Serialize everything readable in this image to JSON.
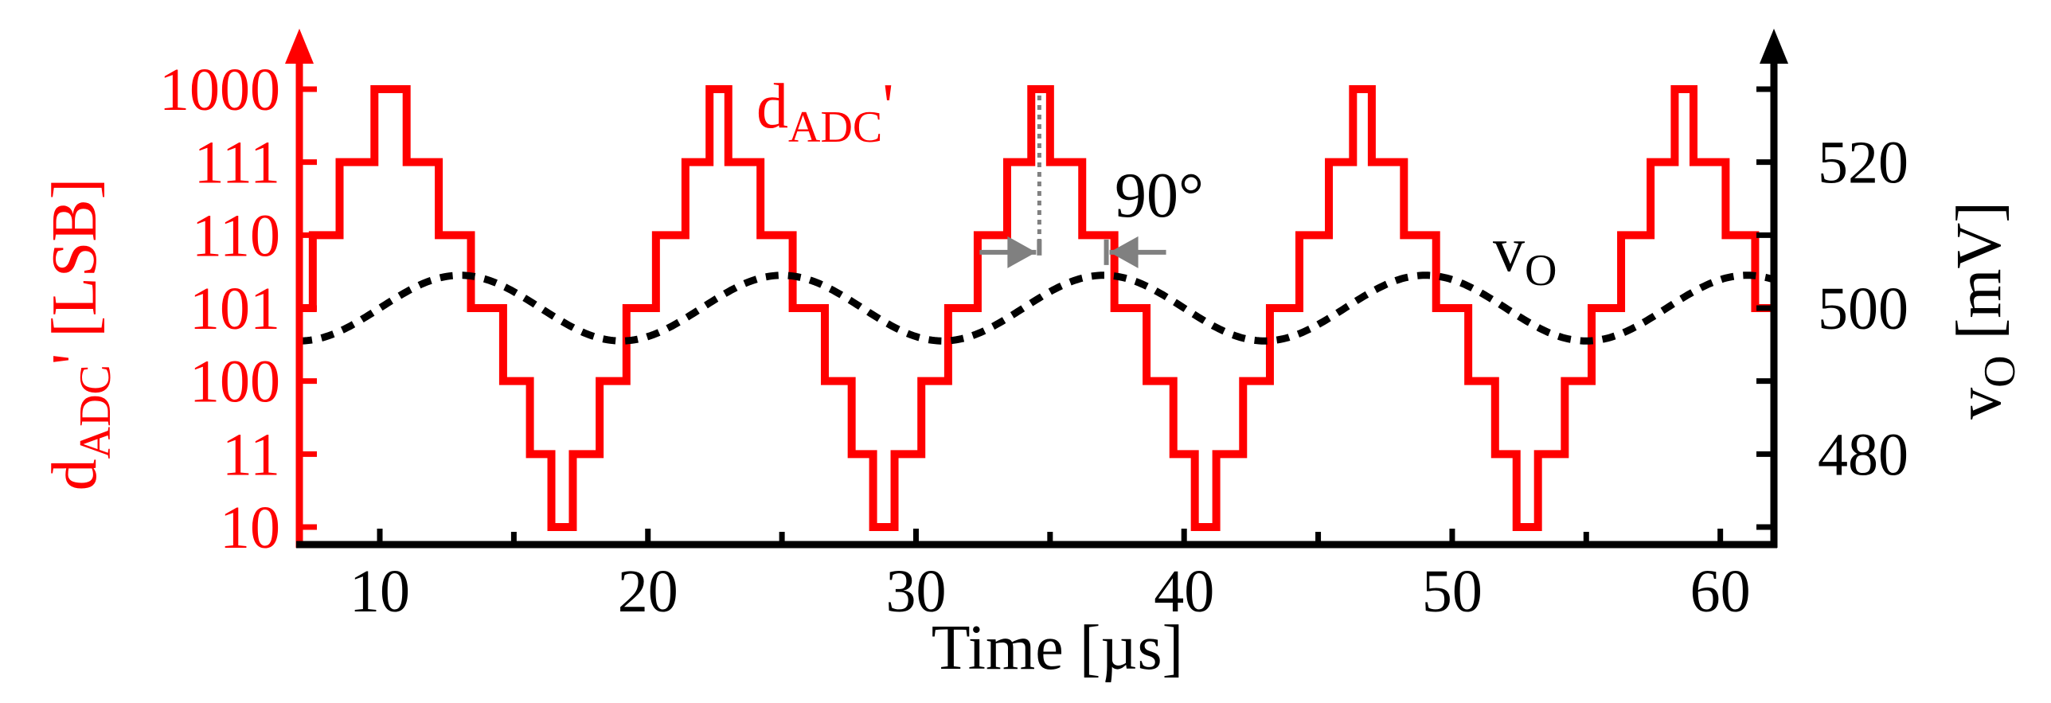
{
  "chart_data": {
    "type": "line",
    "xlabel": "Time [µs]",
    "x_ticks": [
      "10",
      "20",
      "30",
      "40",
      "50",
      "60"
    ],
    "xlim": [
      7,
      62
    ],
    "left_axis": {
      "label_main": "d",
      "label_sub": "ADC",
      "label_rest": "' [LSB]",
      "color": "#ff0000",
      "tick_labels": [
        "1000",
        "111",
        "110",
        "101",
        "100",
        "11",
        "10"
      ],
      "level_values": [
        8,
        7,
        6,
        5,
        4,
        3,
        2
      ],
      "ylim": [
        2,
        8
      ]
    },
    "right_axis": {
      "label_main": "v",
      "label_sub": "O",
      "label_rest": " [mV]",
      "color": "#000000",
      "tick_labels": [
        "520",
        "500",
        "480"
      ],
      "tick_values": [
        520,
        500,
        480
      ],
      "ylim": [
        470,
        530
      ]
    },
    "series": [
      {
        "label_main": "d",
        "label_sub": "ADC",
        "label_rest": "'",
        "axis": "left",
        "style": "step",
        "color": "#ff0000",
        "period_us": 12,
        "steps": [
          {
            "x": 7.0,
            "y": 5
          },
          {
            "x": 7.5,
            "y": 6
          },
          {
            "x": 8.5,
            "y": 7
          },
          {
            "x": 9.8,
            "y": 8
          },
          {
            "x": 11.0,
            "y": 7
          },
          {
            "x": 12.2,
            "y": 6
          },
          {
            "x": 13.4,
            "y": 5
          },
          {
            "x": 14.6,
            "y": 4
          },
          {
            "x": 15.6,
            "y": 3
          },
          {
            "x": 16.4,
            "y": 2
          },
          {
            "x": 17.2,
            "y": 3
          },
          {
            "x": 18.2,
            "y": 4
          },
          {
            "x": 19.2,
            "y": 5
          },
          {
            "x": 20.3,
            "y": 6
          },
          {
            "x": 21.4,
            "y": 7
          },
          {
            "x": 22.3,
            "y": 8
          },
          {
            "x": 23.0,
            "y": 7
          },
          {
            "x": 24.2,
            "y": 6
          },
          {
            "x": 25.4,
            "y": 5
          },
          {
            "x": 26.6,
            "y": 4
          },
          {
            "x": 27.6,
            "y": 3
          },
          {
            "x": 28.4,
            "y": 2
          },
          {
            "x": 29.2,
            "y": 3
          },
          {
            "x": 30.2,
            "y": 4
          },
          {
            "x": 31.2,
            "y": 5
          },
          {
            "x": 32.3,
            "y": 6
          },
          {
            "x": 33.4,
            "y": 7
          },
          {
            "x": 34.3,
            "y": 8
          },
          {
            "x": 35.0,
            "y": 7
          },
          {
            "x": 36.2,
            "y": 6
          },
          {
            "x": 37.4,
            "y": 5
          },
          {
            "x": 38.6,
            "y": 4
          },
          {
            "x": 39.6,
            "y": 3
          },
          {
            "x": 40.4,
            "y": 2
          },
          {
            "x": 41.2,
            "y": 3
          },
          {
            "x": 42.2,
            "y": 4
          },
          {
            "x": 43.2,
            "y": 5
          },
          {
            "x": 44.3,
            "y": 6
          },
          {
            "x": 45.4,
            "y": 7
          },
          {
            "x": 46.3,
            "y": 8
          },
          {
            "x": 47.0,
            "y": 7
          },
          {
            "x": 48.2,
            "y": 6
          },
          {
            "x": 49.4,
            "y": 5
          },
          {
            "x": 50.6,
            "y": 4
          },
          {
            "x": 51.6,
            "y": 3
          },
          {
            "x": 52.4,
            "y": 2
          },
          {
            "x": 53.2,
            "y": 3
          },
          {
            "x": 54.2,
            "y": 4
          },
          {
            "x": 55.2,
            "y": 5
          },
          {
            "x": 56.3,
            "y": 6
          },
          {
            "x": 57.4,
            "y": 7
          },
          {
            "x": 58.3,
            "y": 8
          },
          {
            "x": 59.0,
            "y": 7
          },
          {
            "x": 60.2,
            "y": 6
          },
          {
            "x": 61.3,
            "y": 5
          },
          {
            "x": 62.0,
            "y": 5
          }
        ]
      },
      {
        "label_main": "v",
        "label_sub": "O",
        "label_rest": "",
        "axis": "right",
        "style": "dashed",
        "color": "#000000",
        "offset_mV": 500,
        "amplitude_mV": 4.5,
        "period_us": 12,
        "peak_time_us": 13
      }
    ],
    "annotations": [
      {
        "text": "90°",
        "kind": "phase-shift",
        "from_x": 34.6,
        "to_x": 37.1,
        "level": 6
      },
      {
        "kind": "dotted-marker",
        "x": 34.6,
        "from_level": 8,
        "to_level": 5.7
      }
    ]
  }
}
